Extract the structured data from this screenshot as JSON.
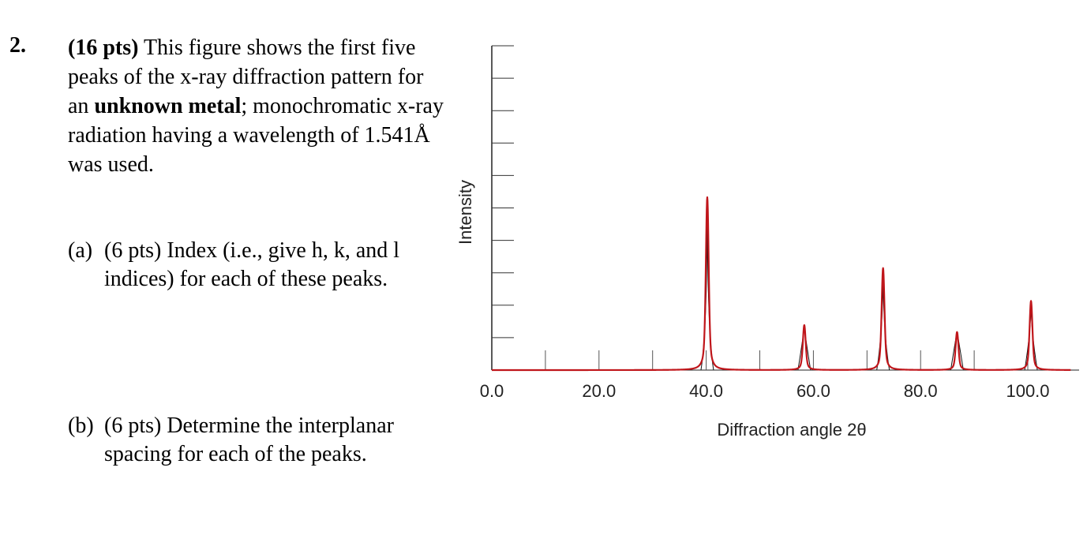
{
  "question": {
    "number": "2.",
    "points": "(16 pts)",
    "stem_1": " This figure shows the first five peaks of the x-ray diffraction pattern for an ",
    "stem_bold": "unknown metal",
    "stem_2": "; monochromatic x-ray radiation having a wavelength of 1.541Å was used."
  },
  "parts": [
    {
      "label": "(a)",
      "text": "(6 pts) Index (i.e., give h, k, and l indices) for each of these peaks."
    },
    {
      "label": "(b)",
      "text": "(6 pts) Determine the interplanar spacing for each of the peaks."
    }
  ],
  "chart_data": {
    "type": "line",
    "title": "",
    "xlabel": "Diffraction angle 2θ",
    "ylabel": "Intensity",
    "xlim": [
      0,
      108
    ],
    "ylim": [
      0,
      100
    ],
    "x_ticks": [
      "0.0",
      "20.0",
      "40.0",
      "60.0",
      "80.0",
      "100.0"
    ],
    "x_tick_values": [
      0,
      20,
      40,
      60,
      80,
      100
    ],
    "peaks": [
      {
        "two_theta": 40.2,
        "intensity": 100
      },
      {
        "two_theta": 58.3,
        "intensity": 26
      },
      {
        "two_theta": 73.0,
        "intensity": 59
      },
      {
        "two_theta": 86.8,
        "intensity": 22
      },
      {
        "two_theta": 100.6,
        "intensity": 40
      }
    ],
    "line_color": "#c0161b",
    "grid": false
  }
}
